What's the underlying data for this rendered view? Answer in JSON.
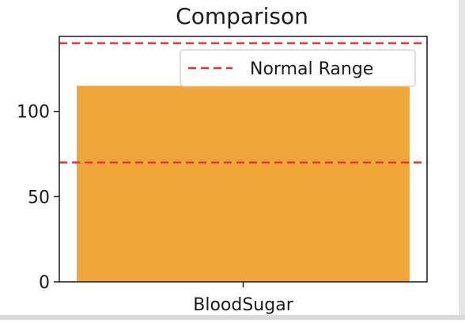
{
  "chart_data": {
    "type": "bar",
    "title": "Comparison",
    "xlabel": "",
    "ylabel": "",
    "categories": [
      "BloodSugar"
    ],
    "values": [
      115
    ],
    "ylim": [
      0,
      144
    ],
    "yticks": [
      0,
      50,
      100
    ],
    "bar_color": "#f0a73a",
    "reference_lines": [
      {
        "name": "Normal Range",
        "y": 70,
        "color": "#e8322a",
        "style": "dashed"
      },
      {
        "name": "Normal Range",
        "y": 140,
        "color": "#e8322a",
        "style": "dashed"
      }
    ],
    "legend": {
      "position": "top-right",
      "entries": [
        "Normal Range"
      ]
    },
    "grid": false
  }
}
